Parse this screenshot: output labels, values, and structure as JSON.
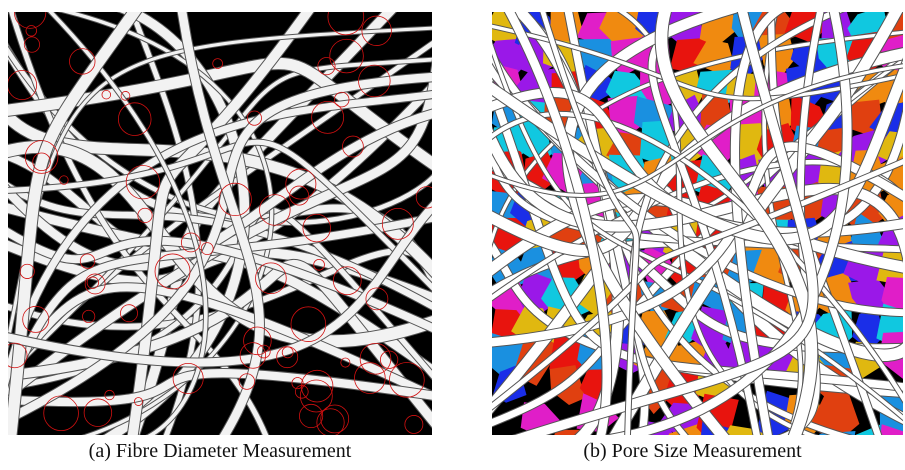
{
  "figure": {
    "panels": [
      {
        "caption": "(a) Fibre Diameter Measurement"
      },
      {
        "caption": "(b) Pore Size Measurement"
      }
    ]
  }
}
